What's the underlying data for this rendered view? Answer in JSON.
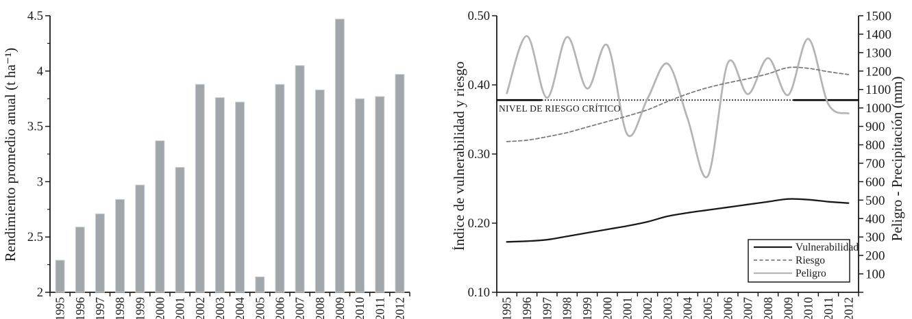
{
  "figure": {
    "background": "#ffffff",
    "text_color": "#1a1a1a",
    "axis_color": "#1a1a1a"
  },
  "chart_data": [
    {
      "type": "bar",
      "title": "",
      "xlabel": "",
      "ylabel": "Rendimiento promedio anual (t ha⁻¹)",
      "categories": [
        "1995",
        "1996",
        "1997",
        "1998",
        "1999",
        "2000",
        "2001",
        "2002",
        "2003",
        "2004",
        "2005",
        "2006",
        "2007",
        "2008",
        "2009",
        "2010",
        "2011",
        "2012"
      ],
      "values": [
        2.29,
        2.59,
        2.71,
        2.84,
        2.97,
        3.37,
        3.13,
        3.88,
        3.76,
        3.72,
        2.14,
        3.88,
        4.05,
        3.83,
        4.47,
        3.75,
        3.77,
        3.97
      ],
      "ylim": [
        2,
        4.5
      ],
      "yticks": [
        2,
        2.5,
        3,
        3.5,
        4,
        4.5
      ],
      "ytick_labels": [
        "2",
        "2.5",
        "3",
        "3.5",
        "4",
        "4.5"
      ],
      "yticks_minor": [
        2.25,
        2.75,
        3.25,
        3.75,
        4.25
      ],
      "grid": false,
      "bar_color": "#a1a6aa",
      "bar_border_color": "#cdd1d4"
    },
    {
      "type": "line",
      "title": "",
      "xlabel": "",
      "ylabel_left": "Índice de vulnerabilidad y riesgo",
      "ylabel_right": "Peligro - Precipitación (mm)",
      "categories": [
        "1995",
        "1996",
        "1997",
        "1998",
        "1999",
        "2000",
        "2001",
        "2002",
        "2003",
        "2004",
        "2005",
        "2006",
        "2007",
        "2008",
        "2009",
        "2010",
        "2011",
        "2012"
      ],
      "ylim_left": [
        0.1,
        0.5
      ],
      "yticks_left": [
        0.1,
        0.2,
        0.3,
        0.4,
        0.5
      ],
      "ytick_labels_left": [
        "0.10",
        "0.20",
        "0.30",
        "0.40",
        "0.50"
      ],
      "ylim_right": [
        0,
        1500
      ],
      "yticks_right": [
        100,
        200,
        300,
        400,
        500,
        600,
        700,
        800,
        900,
        1000,
        1100,
        1200,
        1300,
        1400,
        1500
      ],
      "grid": false,
      "critical_line": {
        "label": "NIVEL DE RIESGO CRÍTICO",
        "value": 0.378,
        "color": "#000000"
      },
      "legend": {
        "position": "bottom-right"
      },
      "series": [
        {
          "name": "Vulnerabilidad",
          "axis": "left",
          "style": "solid",
          "color": "#1a1a1a",
          "width": 2.3,
          "values": [
            0.173,
            0.174,
            0.176,
            0.181,
            0.186,
            0.191,
            0.196,
            0.202,
            0.21,
            0.215,
            0.219,
            0.223,
            0.227,
            0.231,
            0.235,
            0.234,
            0.231,
            0.229
          ]
        },
        {
          "name": "Riesgo",
          "axis": "left",
          "style": "dashed",
          "color": "#7b7b7b",
          "width": 1.8,
          "values": [
            0.318,
            0.32,
            0.325,
            0.331,
            0.339,
            0.347,
            0.355,
            0.364,
            0.376,
            0.387,
            0.396,
            0.403,
            0.409,
            0.416,
            0.425,
            0.424,
            0.419,
            0.415
          ]
        },
        {
          "name": "Peligro",
          "axis": "right",
          "style": "solid",
          "color": "#b5b5b5",
          "width": 2.8,
          "values": [
            1080,
            1390,
            1055,
            1385,
            1105,
            1340,
            855,
            1050,
            1240,
            940,
            630,
            1245,
            1075,
            1270,
            1070,
            1375,
            1020,
            970
          ]
        }
      ]
    }
  ]
}
